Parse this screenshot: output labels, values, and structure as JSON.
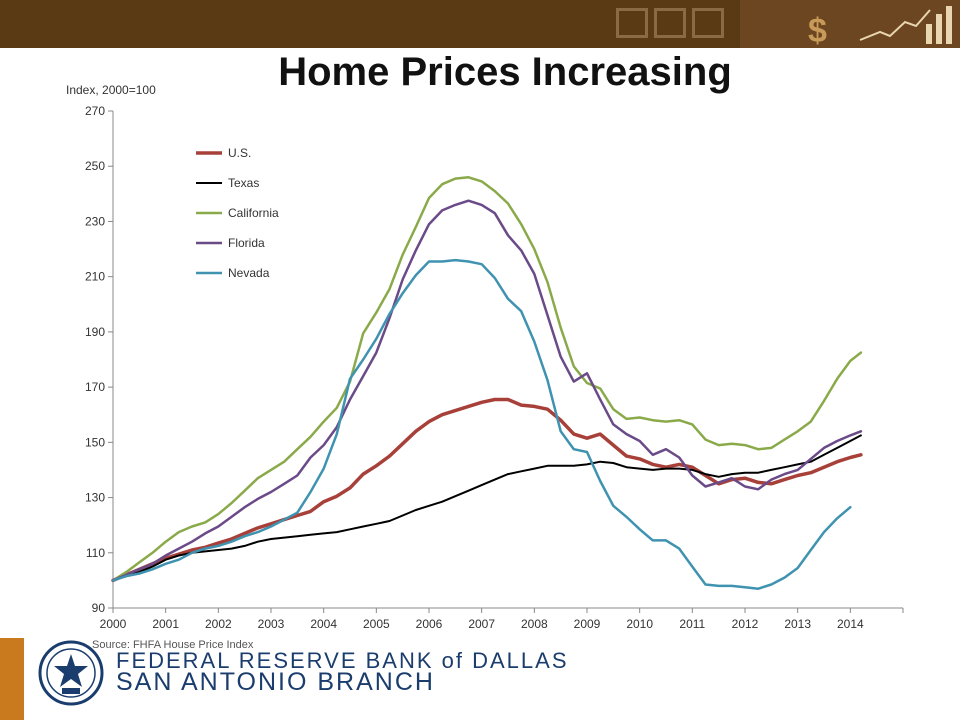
{
  "title": "Home Prices Increasing",
  "footer": {
    "source": "Source: FHFA House Price Index",
    "bank_line1": "FEDERAL RESERVE BANK of DALLAS",
    "bank_line2": "SAN ANTONIO BRANCH"
  },
  "colors": {
    "banner": "#5a3a14",
    "accent": "#c97a1e",
    "bank_text": "#1b3d6e"
  },
  "chart_data": {
    "type": "line",
    "title": "Home Prices Increasing",
    "ylabel": "Index, 2000=100",
    "xlabel": "",
    "ylim": [
      90,
      270
    ],
    "xlim": [
      2000,
      2015
    ],
    "yticks": [
      90,
      110,
      130,
      150,
      170,
      190,
      210,
      230,
      250,
      270
    ],
    "xticks": [
      2000,
      2001,
      2002,
      2003,
      2004,
      2005,
      2006,
      2007,
      2008,
      2009,
      2010,
      2011,
      2012,
      2013,
      2014
    ],
    "grid": false,
    "legend_position": "top-left",
    "series": [
      {
        "name": "U.S.",
        "color": "#a8403a",
        "width": 3.5,
        "points": [
          [
            2000.0,
            100
          ],
          [
            2000.25,
            102
          ],
          [
            2000.5,
            104
          ],
          [
            2000.75,
            106
          ],
          [
            2001.0,
            108
          ],
          [
            2001.25,
            109.5
          ],
          [
            2001.5,
            111
          ],
          [
            2001.75,
            112
          ],
          [
            2002.0,
            113.5
          ],
          [
            2002.25,
            115
          ],
          [
            2002.5,
            117
          ],
          [
            2002.75,
            119
          ],
          [
            2003.0,
            120.5
          ],
          [
            2003.25,
            122
          ],
          [
            2003.5,
            123.5
          ],
          [
            2003.75,
            125
          ],
          [
            2004.0,
            128.5
          ],
          [
            2004.25,
            130.5
          ],
          [
            2004.5,
            133.5
          ],
          [
            2004.75,
            138.5
          ],
          [
            2005.0,
            141.5
          ],
          [
            2005.25,
            145
          ],
          [
            2005.5,
            149.5
          ],
          [
            2005.75,
            154
          ],
          [
            2006.0,
            157.5
          ],
          [
            2006.25,
            160
          ],
          [
            2006.5,
            161.5
          ],
          [
            2006.75,
            163
          ],
          [
            2007.0,
            164.5
          ],
          [
            2007.25,
            165.5
          ],
          [
            2007.5,
            165.5
          ],
          [
            2007.75,
            163.5
          ],
          [
            2008.0,
            163
          ],
          [
            2008.25,
            162
          ],
          [
            2008.5,
            158
          ],
          [
            2008.75,
            153
          ],
          [
            2009.0,
            151.5
          ],
          [
            2009.25,
            153
          ],
          [
            2009.5,
            149
          ],
          [
            2009.75,
            145
          ],
          [
            2010.0,
            144
          ],
          [
            2010.25,
            142
          ],
          [
            2010.5,
            141
          ],
          [
            2010.75,
            142
          ],
          [
            2011.0,
            141
          ],
          [
            2011.25,
            138
          ],
          [
            2011.5,
            135
          ],
          [
            2011.75,
            136.5
          ],
          [
            2012.0,
            137
          ],
          [
            2012.25,
            135.5
          ],
          [
            2012.5,
            135
          ],
          [
            2012.75,
            136.5
          ],
          [
            2013.0,
            138
          ],
          [
            2013.25,
            139
          ],
          [
            2013.5,
            141
          ],
          [
            2013.75,
            143
          ],
          [
            2014.0,
            144.5
          ],
          [
            2014.2,
            145.5
          ]
        ]
      },
      {
        "name": "Texas",
        "color": "#000000",
        "width": 2,
        "points": [
          [
            2000.0,
            100
          ],
          [
            2000.25,
            101.5
          ],
          [
            2000.5,
            103
          ],
          [
            2000.75,
            105
          ],
          [
            2001.0,
            107.5
          ],
          [
            2001.25,
            109
          ],
          [
            2001.5,
            110
          ],
          [
            2001.75,
            110.5
          ],
          [
            2002.0,
            111
          ],
          [
            2002.25,
            111.5
          ],
          [
            2002.5,
            112.5
          ],
          [
            2002.75,
            114
          ],
          [
            2003.0,
            115
          ],
          [
            2003.25,
            115.5
          ],
          [
            2003.5,
            116
          ],
          [
            2003.75,
            116.5
          ],
          [
            2004.0,
            117
          ],
          [
            2004.25,
            117.5
          ],
          [
            2004.5,
            118.5
          ],
          [
            2004.75,
            119.5
          ],
          [
            2005.0,
            120.5
          ],
          [
            2005.25,
            121.5
          ],
          [
            2005.5,
            123.5
          ],
          [
            2005.75,
            125.5
          ],
          [
            2006.0,
            127
          ],
          [
            2006.25,
            128.5
          ],
          [
            2006.5,
            130.5
          ],
          [
            2006.75,
            132.5
          ],
          [
            2007.0,
            134.5
          ],
          [
            2007.25,
            136.5
          ],
          [
            2007.5,
            138.5
          ],
          [
            2007.75,
            139.5
          ],
          [
            2008.0,
            140.5
          ],
          [
            2008.25,
            141.5
          ],
          [
            2008.5,
            141.5
          ],
          [
            2008.75,
            141.5
          ],
          [
            2009.0,
            142
          ],
          [
            2009.25,
            143
          ],
          [
            2009.5,
            142.5
          ],
          [
            2009.75,
            141
          ],
          [
            2010.0,
            140.5
          ],
          [
            2010.25,
            140
          ],
          [
            2010.5,
            140.5
          ],
          [
            2010.75,
            140.5
          ],
          [
            2011.0,
            140
          ],
          [
            2011.25,
            138.5
          ],
          [
            2011.5,
            137.5
          ],
          [
            2011.75,
            138.5
          ],
          [
            2012.0,
            139
          ],
          [
            2012.25,
            139
          ],
          [
            2012.5,
            140
          ],
          [
            2012.75,
            141
          ],
          [
            2013.0,
            142
          ],
          [
            2013.25,
            143
          ],
          [
            2013.5,
            145.5
          ],
          [
            2013.75,
            148
          ],
          [
            2014.0,
            150.5
          ],
          [
            2014.2,
            152.5
          ]
        ]
      },
      {
        "name": "California",
        "color": "#8aaa4a",
        "width": 2.5,
        "points": [
          [
            2000.0,
            100
          ],
          [
            2000.25,
            103
          ],
          [
            2000.5,
            106.5
          ],
          [
            2000.75,
            110
          ],
          [
            2001.0,
            114
          ],
          [
            2001.25,
            117.5
          ],
          [
            2001.5,
            119.5
          ],
          [
            2001.75,
            121
          ],
          [
            2002.0,
            124
          ],
          [
            2002.25,
            128
          ],
          [
            2002.5,
            132.5
          ],
          [
            2002.75,
            137
          ],
          [
            2003.0,
            140
          ],
          [
            2003.25,
            143
          ],
          [
            2003.5,
            147.5
          ],
          [
            2003.75,
            152
          ],
          [
            2004.0,
            157.5
          ],
          [
            2004.25,
            162.5
          ],
          [
            2004.5,
            172
          ],
          [
            2004.75,
            189.5
          ],
          [
            2005.0,
            197
          ],
          [
            2005.25,
            205.5
          ],
          [
            2005.5,
            218
          ],
          [
            2005.75,
            228
          ],
          [
            2006.0,
            238.5
          ],
          [
            2006.25,
            243.5
          ],
          [
            2006.5,
            245.5
          ],
          [
            2006.75,
            246
          ],
          [
            2007.0,
            244.5
          ],
          [
            2007.25,
            241
          ],
          [
            2007.5,
            236.5
          ],
          [
            2007.75,
            229
          ],
          [
            2008.0,
            220
          ],
          [
            2008.25,
            208
          ],
          [
            2008.5,
            191.5
          ],
          [
            2008.75,
            177.5
          ],
          [
            2009.0,
            171.5
          ],
          [
            2009.25,
            169.5
          ],
          [
            2009.5,
            162
          ],
          [
            2009.75,
            158.5
          ],
          [
            2010.0,
            159
          ],
          [
            2010.25,
            158
          ],
          [
            2010.5,
            157.5
          ],
          [
            2010.75,
            158
          ],
          [
            2011.0,
            156.5
          ],
          [
            2011.25,
            151
          ],
          [
            2011.5,
            149
          ],
          [
            2011.75,
            149.5
          ],
          [
            2012.0,
            149
          ],
          [
            2012.25,
            147.5
          ],
          [
            2012.5,
            148
          ],
          [
            2012.75,
            151
          ],
          [
            2013.0,
            154
          ],
          [
            2013.25,
            157.5
          ],
          [
            2013.5,
            165
          ],
          [
            2013.75,
            173
          ],
          [
            2014.0,
            179.5
          ],
          [
            2014.2,
            182.5
          ]
        ]
      },
      {
        "name": "Florida",
        "color": "#6b4a88",
        "width": 2.5,
        "points": [
          [
            2000.0,
            100
          ],
          [
            2000.25,
            102
          ],
          [
            2000.5,
            104
          ],
          [
            2000.75,
            106
          ],
          [
            2001.0,
            109
          ],
          [
            2001.25,
            111.5
          ],
          [
            2001.5,
            114
          ],
          [
            2001.75,
            117
          ],
          [
            2002.0,
            119.5
          ],
          [
            2002.25,
            123
          ],
          [
            2002.5,
            126.5
          ],
          [
            2002.75,
            129.5
          ],
          [
            2003.0,
            132
          ],
          [
            2003.25,
            135
          ],
          [
            2003.5,
            138
          ],
          [
            2003.75,
            144.5
          ],
          [
            2004.0,
            149
          ],
          [
            2004.25,
            155.5
          ],
          [
            2004.5,
            165.5
          ],
          [
            2004.75,
            174
          ],
          [
            2005.0,
            182.5
          ],
          [
            2005.25,
            195
          ],
          [
            2005.5,
            209
          ],
          [
            2005.75,
            219.5
          ],
          [
            2006.0,
            229
          ],
          [
            2006.25,
            234
          ],
          [
            2006.5,
            236
          ],
          [
            2006.75,
            237.5
          ],
          [
            2007.0,
            236
          ],
          [
            2007.25,
            233
          ],
          [
            2007.5,
            225
          ],
          [
            2007.75,
            219.5
          ],
          [
            2008.0,
            211
          ],
          [
            2008.25,
            196
          ],
          [
            2008.5,
            181
          ],
          [
            2008.75,
            172
          ],
          [
            2009.0,
            175
          ],
          [
            2009.25,
            165.5
          ],
          [
            2009.5,
            156.5
          ],
          [
            2009.75,
            153
          ],
          [
            2010.0,
            150.5
          ],
          [
            2010.25,
            145.5
          ],
          [
            2010.5,
            147.5
          ],
          [
            2010.75,
            144.5
          ],
          [
            2011.0,
            138
          ],
          [
            2011.25,
            134
          ],
          [
            2011.5,
            135.5
          ],
          [
            2011.75,
            137
          ],
          [
            2012.0,
            134
          ],
          [
            2012.25,
            133
          ],
          [
            2012.5,
            136.5
          ],
          [
            2012.75,
            138.5
          ],
          [
            2013.0,
            140
          ],
          [
            2013.25,
            144
          ],
          [
            2013.5,
            148
          ],
          [
            2013.75,
            150.5
          ],
          [
            2014.0,
            152.5
          ],
          [
            2014.2,
            154
          ]
        ]
      },
      {
        "name": "Nevada",
        "color": "#3f93b0",
        "width": 2.5,
        "points": [
          [
            2000.0,
            100
          ],
          [
            2000.25,
            101.5
          ],
          [
            2000.5,
            102.5
          ],
          [
            2000.75,
            104
          ],
          [
            2001.0,
            106
          ],
          [
            2001.25,
            107.5
          ],
          [
            2001.5,
            110
          ],
          [
            2001.75,
            111.5
          ],
          [
            2002.0,
            112.5
          ],
          [
            2002.25,
            114
          ],
          [
            2002.5,
            116
          ],
          [
            2002.75,
            117.5
          ],
          [
            2003.0,
            119.5
          ],
          [
            2003.25,
            122
          ],
          [
            2003.5,
            124.5
          ],
          [
            2003.75,
            132
          ],
          [
            2004.0,
            140.5
          ],
          [
            2004.25,
            153
          ],
          [
            2004.5,
            173
          ],
          [
            2004.75,
            180
          ],
          [
            2005.0,
            187.5
          ],
          [
            2005.25,
            196.5
          ],
          [
            2005.5,
            204
          ],
          [
            2005.75,
            210.5
          ],
          [
            2006.0,
            215.5
          ],
          [
            2006.25,
            215.5
          ],
          [
            2006.5,
            216
          ],
          [
            2006.75,
            215.5
          ],
          [
            2007.0,
            214.5
          ],
          [
            2007.25,
            209.5
          ],
          [
            2007.5,
            202
          ],
          [
            2007.75,
            197.5
          ],
          [
            2008.0,
            186.5
          ],
          [
            2008.25,
            172.5
          ],
          [
            2008.5,
            154
          ],
          [
            2008.75,
            147.5
          ],
          [
            2009.0,
            146.5
          ],
          [
            2009.25,
            136
          ],
          [
            2009.5,
            127
          ],
          [
            2009.75,
            123
          ],
          [
            2010.0,
            118.5
          ],
          [
            2010.25,
            114.5
          ],
          [
            2010.5,
            114.5
          ],
          [
            2010.75,
            111.5
          ],
          [
            2011.0,
            105
          ],
          [
            2011.25,
            98.5
          ],
          [
            2011.5,
            98
          ],
          [
            2011.75,
            98
          ],
          [
            2012.0,
            97.5
          ],
          [
            2012.25,
            97
          ],
          [
            2012.5,
            98.5
          ],
          [
            2012.75,
            101
          ],
          [
            2013.0,
            104.5
          ],
          [
            2013.25,
            111
          ],
          [
            2013.5,
            117.5
          ],
          [
            2013.75,
            122.5
          ],
          [
            2014.0,
            126.5
          ]
        ]
      }
    ]
  }
}
